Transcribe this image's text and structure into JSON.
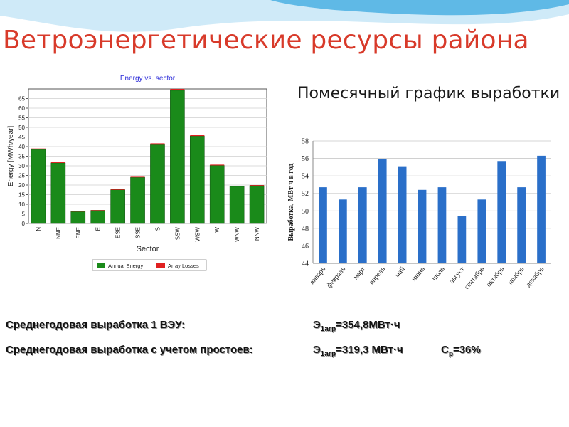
{
  "slide": {
    "title": "Ветроэнергетические ресурсы района",
    "colors": {
      "title": "#d83a2a",
      "wave_light": "#cfeaf8",
      "wave_dark": "#5fb9e6"
    }
  },
  "chart_data": [
    {
      "type": "bar",
      "title": "Energy vs. sector",
      "xlabel": "Sector",
      "ylabel": "Energy [MWh/year]",
      "ylim": [
        0,
        70
      ],
      "yticks": [
        0,
        5,
        10,
        15,
        20,
        25,
        30,
        35,
        40,
        45,
        50,
        55,
        60,
        65
      ],
      "grid": true,
      "legend_position": "bottom",
      "categories": [
        "N",
        "NNE",
        "ENE",
        "E",
        "ESE",
        "SSE",
        "S",
        "SSW",
        "WSW",
        "W",
        "WNW",
        "NNW"
      ],
      "series": [
        {
          "name": "Annual Energy",
          "color": "#1a8a1a",
          "values": [
            38.5,
            31.5,
            6.2,
            6.8,
            17.5,
            24,
            41,
            69.3,
            45.5,
            30.2,
            19.3,
            19.7
          ]
        },
        {
          "name": "Array Losses",
          "color": "#e02020",
          "values": [
            0.5,
            0.4,
            0.2,
            0.2,
            0.3,
            0.3,
            0.7,
            0.7,
            0.5,
            0.4,
            0.3,
            0.3
          ]
        }
      ]
    },
    {
      "type": "bar",
      "title": "Помесячный график выработки",
      "xlabel": "",
      "ylabel": "Выработка, МВт ч в год",
      "ylim": [
        44,
        58
      ],
      "yticks": [
        44,
        46,
        48,
        50,
        52,
        54,
        56,
        58
      ],
      "grid": true,
      "bar_color": "#2a6fc9",
      "categories": [
        "январь",
        "февраль",
        "март",
        "апрель",
        "май",
        "июнь",
        "июль",
        "август",
        "сентябрь",
        "октябрь",
        "ноябрь",
        "декабрь"
      ],
      "values": [
        52.7,
        51.3,
        52.7,
        55.9,
        55.1,
        52.4,
        52.7,
        49.4,
        51.3,
        55.7,
        52.7,
        56.3
      ]
    }
  ],
  "stats": {
    "line1": {
      "label": "Среднегодовая выработка  1 ВЭУ:",
      "var": "Э",
      "sub": "1агр",
      "value": "=354,8МВт·ч"
    },
    "line2": {
      "label": "Среднегодовая выработка с учетом простоев:",
      "var": "Э",
      "sub": "1агр",
      "value": "=319,3 МВт·ч",
      "var2": "С",
      "sub2": "р",
      "value2": "=36%"
    }
  }
}
